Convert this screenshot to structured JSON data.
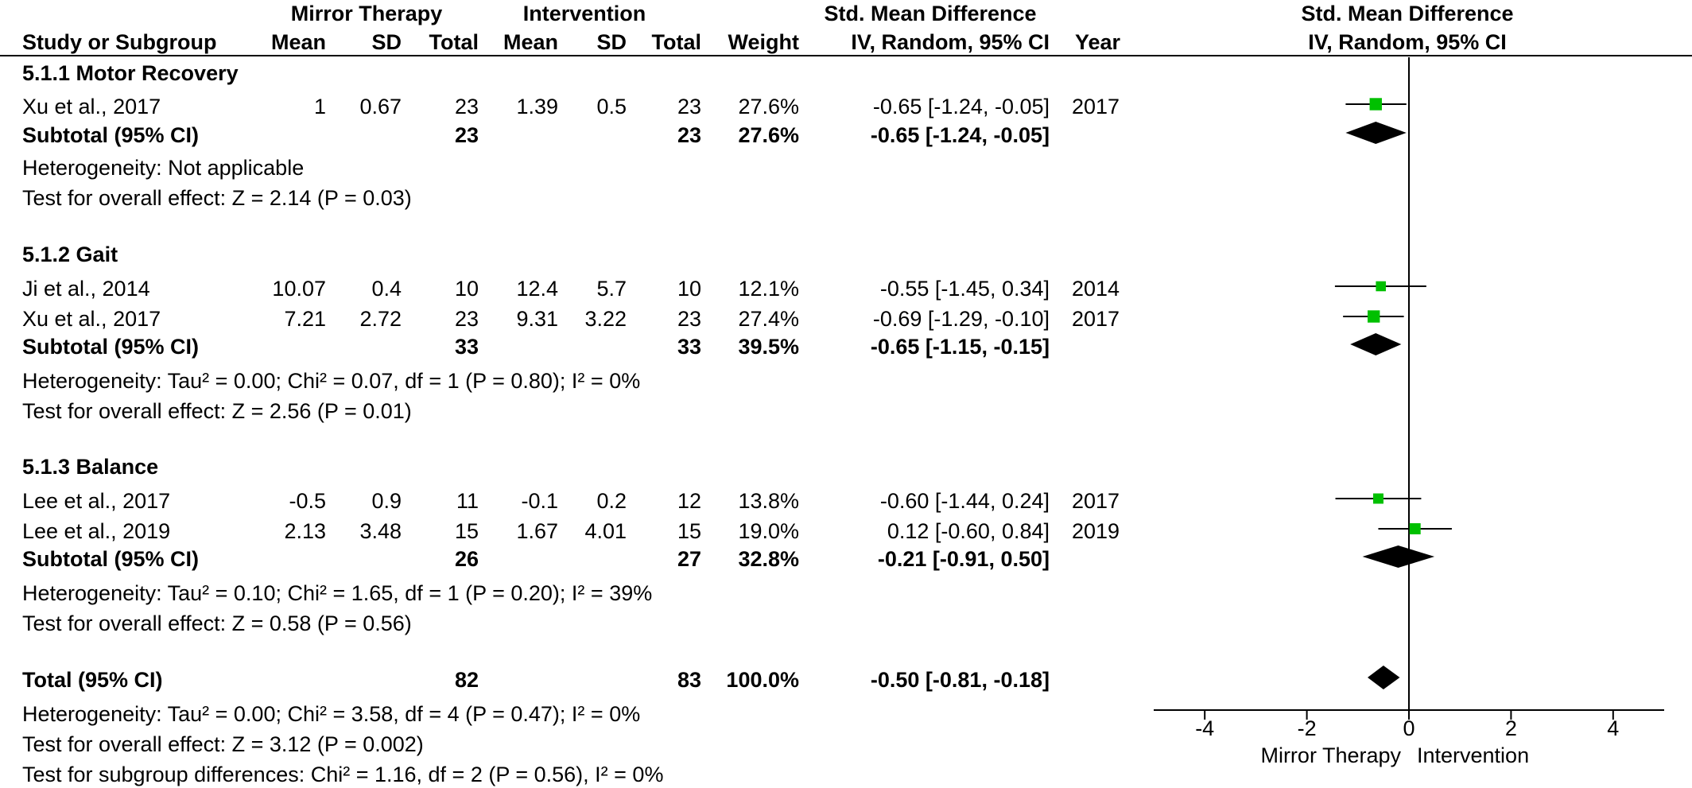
{
  "header": {
    "group1": "Mirror Therapy",
    "group2": "Intervention",
    "smd_title": "Std. Mean Difference",
    "smd_method": "IV, Random, 95% CI",
    "col_study": "Study or Subgroup",
    "col_mean": "Mean",
    "col_sd": "SD",
    "col_total": "Total",
    "col_weight": "Weight",
    "col_year": "Year"
  },
  "subgroups": [
    {
      "title": "5.1.1 Motor Recovery",
      "studies": [
        {
          "study": "Xu et al., 2017",
          "m1": "1",
          "sd1": "0.67",
          "n1": "23",
          "m2": "1.39",
          "sd2": "0.5",
          "n2": "23",
          "weight": "27.6%",
          "ci": "-0.65 [-1.24, -0.05]",
          "year": "2017"
        }
      ],
      "subtotal": {
        "label": "Subtotal (95% CI)",
        "n1": "23",
        "n2": "23",
        "weight": "27.6%",
        "ci": "-0.65 [-1.24, -0.05]"
      },
      "heterogeneity": "Heterogeneity: Not applicable",
      "overall": "Test for overall effect: Z = 2.14 (P = 0.03)"
    },
    {
      "title": "5.1.2 Gait",
      "studies": [
        {
          "study": "Ji et al., 2014",
          "m1": "10.07",
          "sd1": "0.4",
          "n1": "10",
          "m2": "12.4",
          "sd2": "5.7",
          "n2": "10",
          "weight": "12.1%",
          "ci": "-0.55 [-1.45, 0.34]",
          "year": "2014"
        },
        {
          "study": "Xu et al., 2017",
          "m1": "7.21",
          "sd1": "2.72",
          "n1": "23",
          "m2": "9.31",
          "sd2": "3.22",
          "n2": "23",
          "weight": "27.4%",
          "ci": "-0.69 [-1.29, -0.10]",
          "year": "2017"
        }
      ],
      "subtotal": {
        "label": "Subtotal (95% CI)",
        "n1": "33",
        "n2": "33",
        "weight": "39.5%",
        "ci": "-0.65 [-1.15, -0.15]"
      },
      "heterogeneity": "Heterogeneity: Tau² = 0.00; Chi² = 0.07, df = 1 (P = 0.80); I² = 0%",
      "overall": "Test for overall effect: Z = 2.56 (P = 0.01)"
    },
    {
      "title": "5.1.3 Balance",
      "studies": [
        {
          "study": "Lee et al., 2017",
          "m1": "-0.5",
          "sd1": "0.9",
          "n1": "11",
          "m2": "-0.1",
          "sd2": "0.2",
          "n2": "12",
          "weight": "13.8%",
          "ci": "-0.60 [-1.44, 0.24]",
          "year": "2017"
        },
        {
          "study": "Lee et al., 2019",
          "m1": "2.13",
          "sd1": "3.48",
          "n1": "15",
          "m2": "1.67",
          "sd2": "4.01",
          "n2": "15",
          "weight": "19.0%",
          "ci": "0.12 [-0.60, 0.84]",
          "year": "2019"
        }
      ],
      "subtotal": {
        "label": "Subtotal (95% CI)",
        "n1": "26",
        "n2": "27",
        "weight": "32.8%",
        "ci": "-0.21 [-0.91, 0.50]"
      },
      "heterogeneity": "Heterogeneity: Tau² = 0.10; Chi² = 1.65, df = 1 (P = 0.20); I² = 39%",
      "overall": "Test for overall effect: Z = 0.58 (P = 0.56)"
    }
  ],
  "total": {
    "label": "Total (95% CI)",
    "n1": "82",
    "n2": "83",
    "weight": "100.0%",
    "ci": "-0.50 [-0.81, -0.18]",
    "heterogeneity": "Heterogeneity: Tau² = 0.00; Chi² = 3.58, df = 4 (P = 0.47); I² = 0%",
    "overall": "Test for overall effect: Z = 3.12 (P = 0.002)",
    "subgroup_diff": "Test for subgroup differences: Chi² = 1.16, df = 2 (P = 0.56), I² = 0%"
  },
  "chart_data": {
    "type": "scatter",
    "title": "Std. Mean Difference",
    "subtitle": "IV, Random, 95% CI",
    "xlim": [
      -5,
      5
    ],
    "xticks": [
      -4,
      -2,
      0,
      2,
      4
    ],
    "favours_left": "Mirror Therapy",
    "favours_right": "Intervention",
    "marker_color": "#00c000",
    "diamond_color": "#000000",
    "studies": [
      {
        "label": "Xu et al., 2017",
        "group": "5.1.1 Motor Recovery",
        "est": -0.65,
        "lo": -1.24,
        "hi": -0.05,
        "weight": 27.6
      },
      {
        "label": "Ji et al., 2014",
        "group": "5.1.2 Gait",
        "est": -0.55,
        "lo": -1.45,
        "hi": 0.34,
        "weight": 12.1
      },
      {
        "label": "Xu et al., 2017",
        "group": "5.1.2 Gait",
        "est": -0.69,
        "lo": -1.29,
        "hi": -0.1,
        "weight": 27.4
      },
      {
        "label": "Lee et al., 2017",
        "group": "5.1.3 Balance",
        "est": -0.6,
        "lo": -1.44,
        "hi": 0.24,
        "weight": 13.8
      },
      {
        "label": "Lee et al., 2019",
        "group": "5.1.3 Balance",
        "est": 0.12,
        "lo": -0.6,
        "hi": 0.84,
        "weight": 19.0
      }
    ],
    "pooled": [
      {
        "label": "Subtotal (95% CI)",
        "group": "5.1.1 Motor Recovery",
        "est": -0.65,
        "lo": -1.24,
        "hi": -0.05
      },
      {
        "label": "Subtotal (95% CI)",
        "group": "5.1.2 Gait",
        "est": -0.65,
        "lo": -1.15,
        "hi": -0.15
      },
      {
        "label": "Subtotal (95% CI)",
        "group": "5.1.3 Balance",
        "est": -0.21,
        "lo": -0.91,
        "hi": 0.5
      },
      {
        "label": "Total (95% CI)",
        "group": "Total",
        "est": -0.5,
        "lo": -0.81,
        "hi": -0.18
      }
    ]
  }
}
